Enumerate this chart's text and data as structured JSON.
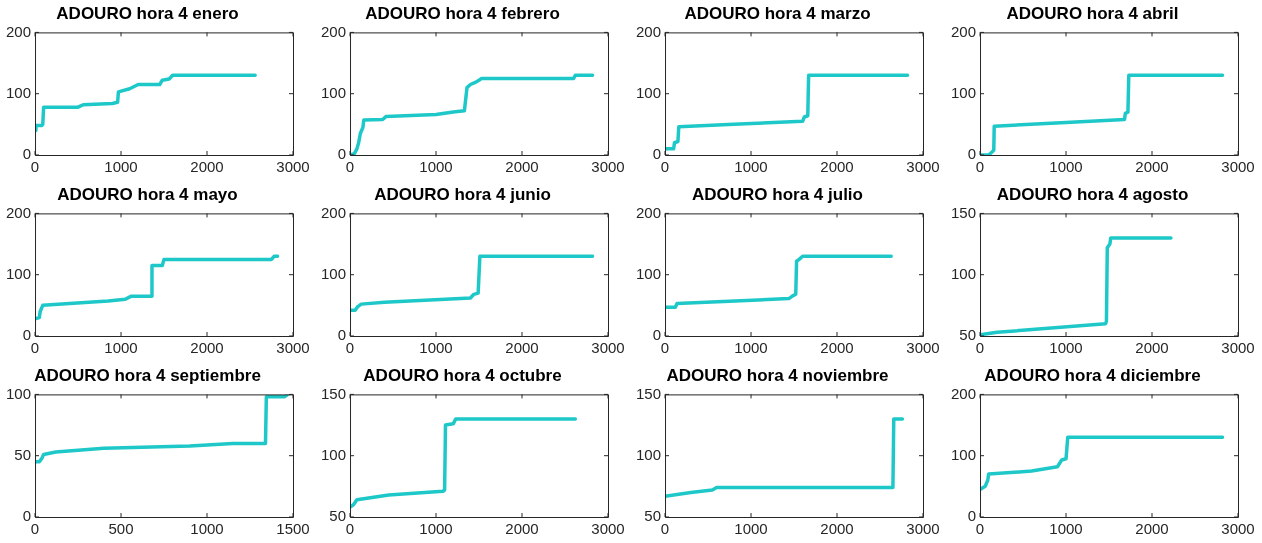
{
  "chart_data": [
    {
      "type": "line",
      "title": "ADOURO hora 4 enero",
      "marker": "none",
      "xlim": [
        0,
        3000
      ],
      "xticks": [
        0,
        1000,
        2000,
        3000
      ],
      "ylim": [
        0,
        200
      ],
      "yticks": [
        0,
        100,
        200
      ],
      "series": [
        {
          "color": "#1fc8c8",
          "x": [
            0,
            10,
            80,
            90,
            100,
            500,
            560,
            900,
            960,
            970,
            1100,
            1200,
            1450,
            1480,
            1560,
            1600,
            2560
          ],
          "values": [
            40,
            48,
            48,
            50,
            78,
            78,
            82,
            84,
            86,
            103,
            108,
            115,
            115,
            122,
            124,
            130,
            130
          ]
        }
      ]
    },
    {
      "type": "line",
      "title": "ADOURO hora 4 febrero",
      "marker": "none",
      "xlim": [
        0,
        3000
      ],
      "xticks": [
        0,
        1000,
        2000,
        3000
      ],
      "ylim": [
        0,
        200
      ],
      "yticks": [
        0,
        100,
        200
      ],
      "series": [
        {
          "color": "#1fc8c8",
          "x": [
            0,
            50,
            80,
            100,
            120,
            150,
            160,
            380,
            420,
            1000,
            1200,
            1330,
            1360,
            1400,
            1450,
            1500,
            1530,
            2600,
            2620,
            2820
          ],
          "values": [
            0,
            2,
            10,
            20,
            35,
            45,
            57,
            58,
            63,
            66,
            70,
            72,
            110,
            115,
            118,
            122,
            125,
            125,
            130,
            130
          ]
        }
      ]
    },
    {
      "type": "line",
      "title": "ADOURO hora 4 marzo",
      "marker": "none",
      "xlim": [
        0,
        3000
      ],
      "xticks": [
        0,
        1000,
        2000,
        3000
      ],
      "ylim": [
        0,
        200
      ],
      "yticks": [
        0,
        100,
        200
      ],
      "series": [
        {
          "color": "#1fc8c8",
          "x": [
            0,
            100,
            110,
            150,
            160,
            800,
            1600,
            1620,
            1660,
            1670,
            2820
          ],
          "values": [
            10,
            10,
            20,
            22,
            46,
            50,
            55,
            62,
            64,
            130,
            130
          ]
        }
      ]
    },
    {
      "type": "line",
      "title": "ADOURO hora 4 abril",
      "marker": "none",
      "xlim": [
        0,
        3000
      ],
      "xticks": [
        0,
        1000,
        2000,
        3000
      ],
      "ylim": [
        0,
        200
      ],
      "yticks": [
        0,
        100,
        200
      ],
      "series": [
        {
          "color": "#1fc8c8",
          "x": [
            0,
            100,
            140,
            160,
            165,
            1000,
            1680,
            1690,
            1720,
            1730,
            2820
          ],
          "values": [
            0,
            0,
            5,
            8,
            47,
            53,
            58,
            68,
            70,
            130,
            130
          ]
        }
      ]
    },
    {
      "type": "line",
      "title": "ADOURO hora 4 mayo",
      "marker": "none",
      "xlim": [
        0,
        3000
      ],
      "xticks": [
        0,
        1000,
        2000,
        3000
      ],
      "ylim": [
        0,
        200
      ],
      "yticks": [
        0,
        100,
        200
      ],
      "series": [
        {
          "color": "#1fc8c8",
          "x": [
            0,
            50,
            60,
            90,
            850,
            1050,
            1120,
            1350,
            1360,
            1480,
            1500,
            2750,
            2780,
            2820
          ],
          "values": [
            28,
            30,
            40,
            50,
            57,
            60,
            65,
            65,
            115,
            115,
            125,
            125,
            130,
            130
          ]
        }
      ]
    },
    {
      "type": "line",
      "title": "ADOURO hora 4 junio",
      "marker": "none",
      "xlim": [
        0,
        3000
      ],
      "xticks": [
        0,
        1000,
        2000,
        3000
      ],
      "ylim": [
        0,
        200
      ],
      "yticks": [
        0,
        100,
        200
      ],
      "series": [
        {
          "color": "#1fc8c8",
          "x": [
            0,
            60,
            90,
            130,
            400,
            1400,
            1440,
            1490,
            1510,
            2820
          ],
          "values": [
            42,
            42,
            48,
            52,
            55,
            62,
            68,
            70,
            130,
            130
          ]
        }
      ]
    },
    {
      "type": "line",
      "title": "ADOURO hora 4 julio",
      "marker": "none",
      "xlim": [
        0,
        3000
      ],
      "xticks": [
        0,
        1000,
        2000,
        3000
      ],
      "ylim": [
        0,
        200
      ],
      "yticks": [
        0,
        100,
        200
      ],
      "series": [
        {
          "color": "#1fc8c8",
          "x": [
            0,
            120,
            140,
            1440,
            1480,
            1520,
            1530,
            1560,
            1600,
            2630
          ],
          "values": [
            47,
            47,
            53,
            61,
            65,
            68,
            122,
            125,
            130,
            130
          ]
        }
      ]
    },
    {
      "type": "line",
      "title": "ADOURO hora 4 agosto",
      "marker": "none",
      "xlim": [
        0,
        3000
      ],
      "xticks": [
        0,
        1000,
        2000,
        3000
      ],
      "ylim": [
        50,
        150
      ],
      "yticks": [
        50,
        100,
        150
      ],
      "series": [
        {
          "color": "#1fc8c8",
          "x": [
            0,
            200,
            1460,
            1470,
            1480,
            1510,
            1520,
            2220
          ],
          "values": [
            51,
            53,
            60,
            62,
            122,
            125,
            130,
            130
          ]
        }
      ]
    },
    {
      "type": "line",
      "title": "ADOURO hora 4 septiembre",
      "marker": "none",
      "xlim": [
        0,
        1500
      ],
      "xticks": [
        0,
        500,
        1000,
        1500
      ],
      "ylim": [
        0,
        100
      ],
      "yticks": [
        0,
        50,
        100
      ],
      "series": [
        {
          "color": "#1fc8c8",
          "x": [
            0,
            25,
            40,
            50,
            120,
            400,
            900,
            1150,
            1340,
            1345,
            1450,
            1470
          ],
          "values": [
            45,
            45,
            48,
            51,
            53,
            56,
            58,
            60,
            60,
            98,
            98,
            100
          ]
        }
      ]
    },
    {
      "type": "line",
      "title": "ADOURO hora 4 octubre",
      "marker": "none",
      "xlim": [
        0,
        3000
      ],
      "xticks": [
        0,
        1000,
        2000,
        3000
      ],
      "ylim": [
        50,
        150
      ],
      "yticks": [
        50,
        100,
        150
      ],
      "series": [
        {
          "color": "#1fc8c8",
          "x": [
            0,
            40,
            80,
            450,
            1080,
            1100,
            1110,
            1200,
            1230,
            2620
          ],
          "values": [
            58,
            60,
            64,
            68,
            71,
            72,
            125,
            126,
            130,
            130
          ]
        }
      ]
    },
    {
      "type": "line",
      "title": "ADOURO hora 4 noviembre",
      "marker": "none",
      "xlim": [
        0,
        3000
      ],
      "xticks": [
        0,
        1000,
        2000,
        3000
      ],
      "ylim": [
        50,
        150
      ],
      "yticks": [
        50,
        100,
        150
      ],
      "series": [
        {
          "color": "#1fc8c8",
          "x": [
            0,
            300,
            550,
            600,
            2650,
            2660,
            2760
          ],
          "values": [
            67,
            70,
            72,
            74,
            74,
            130,
            130
          ]
        }
      ]
    },
    {
      "type": "line",
      "title": "ADOURO hora 4 diciembre",
      "marker": "none",
      "xlim": [
        0,
        3000
      ],
      "xticks": [
        0,
        1000,
        2000,
        3000
      ],
      "ylim": [
        0,
        200
      ],
      "yticks": [
        0,
        100,
        200
      ],
      "series": [
        {
          "color": "#1fc8c8",
          "x": [
            0,
            60,
            90,
            100,
            600,
            900,
            950,
            1000,
            1020,
            2820
          ],
          "values": [
            45,
            50,
            60,
            70,
            75,
            82,
            93,
            95,
            130,
            130
          ]
        }
      ]
    }
  ]
}
